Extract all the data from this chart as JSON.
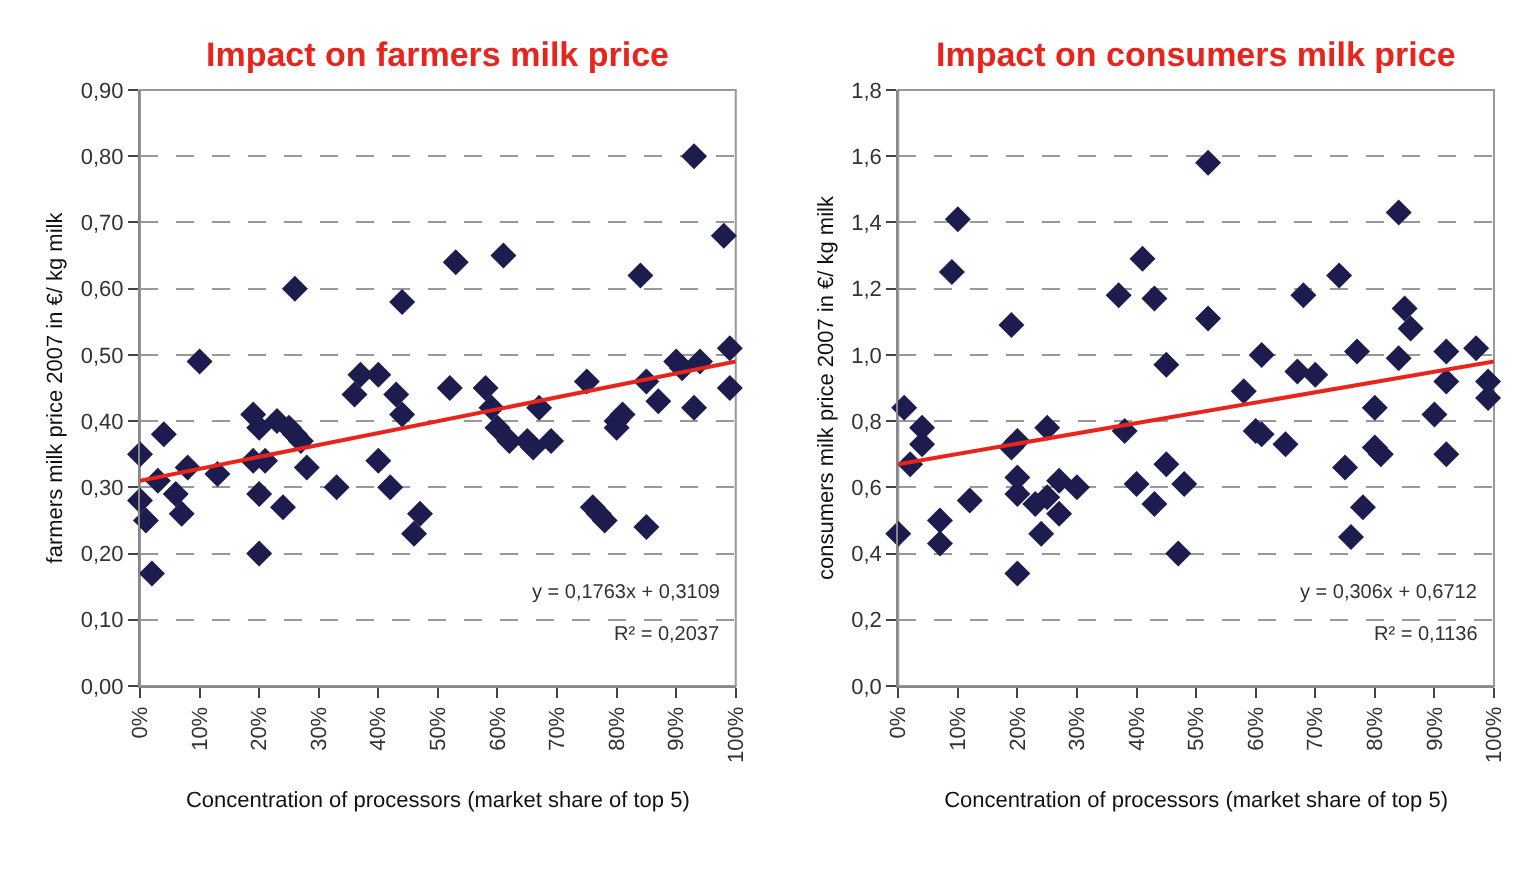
{
  "chart_data": [
    {
      "type": "scatter",
      "title": "Impact on farmers milk price",
      "xlabel": "Concentration of processors (market share of top 5)",
      "ylabel": "farmers milk price 2007 in €/ kg milk",
      "marker": "diamond",
      "grid": "y",
      "xlim": [
        0,
        1
      ],
      "ylim": [
        0,
        0.9
      ],
      "xticks": [
        {
          "value": 0,
          "label": "0%"
        },
        {
          "value": 0.1,
          "label": "10%"
        },
        {
          "value": 0.2,
          "label": "20%"
        },
        {
          "value": 0.3,
          "label": "30%"
        },
        {
          "value": 0.4,
          "label": "40%"
        },
        {
          "value": 0.5,
          "label": "50%"
        },
        {
          "value": 0.6,
          "label": "60%"
        },
        {
          "value": 0.7,
          "label": "70%"
        },
        {
          "value": 0.8,
          "label": "80%"
        },
        {
          "value": 0.9,
          "label": "90%"
        },
        {
          "value": 1,
          "label": "100%"
        }
      ],
      "yticks": [
        {
          "value": 0,
          "label": "0,00"
        },
        {
          "value": 0.1,
          "label": "0,10"
        },
        {
          "value": 0.2,
          "label": "0,20"
        },
        {
          "value": 0.3,
          "label": "0,30"
        },
        {
          "value": 0.4,
          "label": "0,40"
        },
        {
          "value": 0.5,
          "label": "0,50"
        },
        {
          "value": 0.6,
          "label": "0,60"
        },
        {
          "value": 0.7,
          "label": "0,70"
        },
        {
          "value": 0.8,
          "label": "0,80"
        },
        {
          "value": 0.9,
          "label": "0,90"
        }
      ],
      "annotations": [
        "y = 0,1763x + 0,3109",
        "R² = 0,2037"
      ],
      "series": [
        {
          "color": "#1c1c4e",
          "x": [
            0,
            0,
            0.02,
            0.01,
            0.03,
            0.04,
            0.06,
            0.07,
            0.08,
            0.1,
            0.13,
            0.19,
            0.19,
            0.2,
            0.2,
            0.2,
            0.21,
            0.23,
            0.24,
            0.25,
            0.26,
            0.26,
            0.27,
            0.28,
            0.33,
            0.36,
            0.37,
            0.4,
            0.4,
            0.42,
            0.43,
            0.44,
            0.44,
            0.46,
            0.47,
            0.52,
            0.53,
            0.58,
            0.59,
            0.6,
            0.61,
            0.62,
            0.65,
            0.66,
            0.67,
            0.69,
            0.75,
            0.76,
            0.77,
            0.78,
            0.8,
            0.8,
            0.81,
            0.84,
            0.85,
            0.85,
            0.87,
            0.9,
            0.91,
            0.93,
            0.93,
            0.94,
            0.98,
            0.99,
            0.99
          ],
          "values": [
            0.35,
            0.28,
            0.17,
            0.25,
            0.31,
            0.38,
            0.29,
            0.26,
            0.33,
            0.49,
            0.32,
            0.41,
            0.34,
            0.39,
            0.29,
            0.2,
            0.34,
            0.4,
            0.27,
            0.39,
            0.38,
            0.6,
            0.37,
            0.33,
            0.3,
            0.44,
            0.47,
            0.47,
            0.34,
            0.3,
            0.44,
            0.58,
            0.41,
            0.23,
            0.26,
            0.45,
            0.64,
            0.45,
            0.42,
            0.39,
            0.65,
            0.37,
            0.37,
            0.36,
            0.42,
            0.37,
            0.46,
            0.27,
            0.26,
            0.25,
            0.4,
            0.39,
            0.41,
            0.62,
            0.24,
            0.46,
            0.43,
            0.49,
            0.48,
            0.8,
            0.42,
            0.49,
            0.68,
            0.45,
            0.51
          ]
        },
        {
          "type": "line",
          "color": "#e8251c",
          "marker": "none",
          "x": [
            0,
            1
          ],
          "values": [
            0.31,
            0.49
          ]
        }
      ]
    },
    {
      "type": "scatter",
      "title": "Impact on consumers milk price",
      "xlabel": "Concentration of processors (market share of top 5)",
      "ylabel": "consumers milk price 2007 in €/ kg milk",
      "marker": "diamond",
      "grid": "y",
      "xlim": [
        0,
        1
      ],
      "ylim": [
        0,
        1.8
      ],
      "xticks": [
        {
          "value": 0,
          "label": "0%"
        },
        {
          "value": 0.1,
          "label": "10%"
        },
        {
          "value": 0.2,
          "label": "20%"
        },
        {
          "value": 0.3,
          "label": "30%"
        },
        {
          "value": 0.4,
          "label": "40%"
        },
        {
          "value": 0.5,
          "label": "50%"
        },
        {
          "value": 0.6,
          "label": "60%"
        },
        {
          "value": 0.7,
          "label": "70%"
        },
        {
          "value": 0.8,
          "label": "80%"
        },
        {
          "value": 0.9,
          "label": "90%"
        },
        {
          "value": 1,
          "label": "100%"
        }
      ],
      "yticks": [
        {
          "value": 0,
          "label": "0,0"
        },
        {
          "value": 0.2,
          "label": "0,2"
        },
        {
          "value": 0.4,
          "label": "0,4"
        },
        {
          "value": 0.6,
          "label": "0,6"
        },
        {
          "value": 0.8,
          "label": "0,8"
        },
        {
          "value": 1,
          "label": "1,0"
        },
        {
          "value": 1.2,
          "label": "1,2"
        },
        {
          "value": 1.4,
          "label": "1,4"
        },
        {
          "value": 1.6,
          "label": "1,6"
        },
        {
          "value": 1.8,
          "label": "1,8"
        }
      ],
      "annotations": [
        "y = 0,306x + 0,6712",
        "R² = 0,1136"
      ],
      "series": [
        {
          "color": "#1c1c4e",
          "x": [
            0,
            0.01,
            0.02,
            0.04,
            0.04,
            0.07,
            0.07,
            0.09,
            0.1,
            0.12,
            0.19,
            0.19,
            0.2,
            0.2,
            0.2,
            0.2,
            0.23,
            0.24,
            0.25,
            0.25,
            0.27,
            0.27,
            0.3,
            0.37,
            0.38,
            0.4,
            0.41,
            0.43,
            0.43,
            0.45,
            0.45,
            0.47,
            0.48,
            0.52,
            0.52,
            0.58,
            0.6,
            0.61,
            0.61,
            0.65,
            0.67,
            0.68,
            0.7,
            0.74,
            0.75,
            0.76,
            0.77,
            0.78,
            0.8,
            0.8,
            0.81,
            0.84,
            0.84,
            0.85,
            0.86,
            0.9,
            0.92,
            0.92,
            0.92,
            0.97,
            0.99,
            0.99
          ],
          "values": [
            0.46,
            0.84,
            0.67,
            0.73,
            0.78,
            0.5,
            0.43,
            1.25,
            1.41,
            0.56,
            1.09,
            0.72,
            0.63,
            0.58,
            0.74,
            0.34,
            0.55,
            0.46,
            0.57,
            0.78,
            0.52,
            0.62,
            0.6,
            1.18,
            0.77,
            0.61,
            1.29,
            0.55,
            1.17,
            0.97,
            0.67,
            0.4,
            0.61,
            1.11,
            1.58,
            0.89,
            0.77,
            0.76,
            1.0,
            0.73,
            0.95,
            1.18,
            0.94,
            1.24,
            0.66,
            0.45,
            1.01,
            0.54,
            0.84,
            0.72,
            0.7,
            0.99,
            1.43,
            1.14,
            1.08,
            0.82,
            1.01,
            0.92,
            0.7,
            1.02,
            0.92,
            0.87
          ]
        },
        {
          "type": "line",
          "color": "#e8251c",
          "marker": "none",
          "x": [
            0,
            1
          ],
          "values": [
            0.67,
            0.98
          ]
        }
      ]
    }
  ]
}
